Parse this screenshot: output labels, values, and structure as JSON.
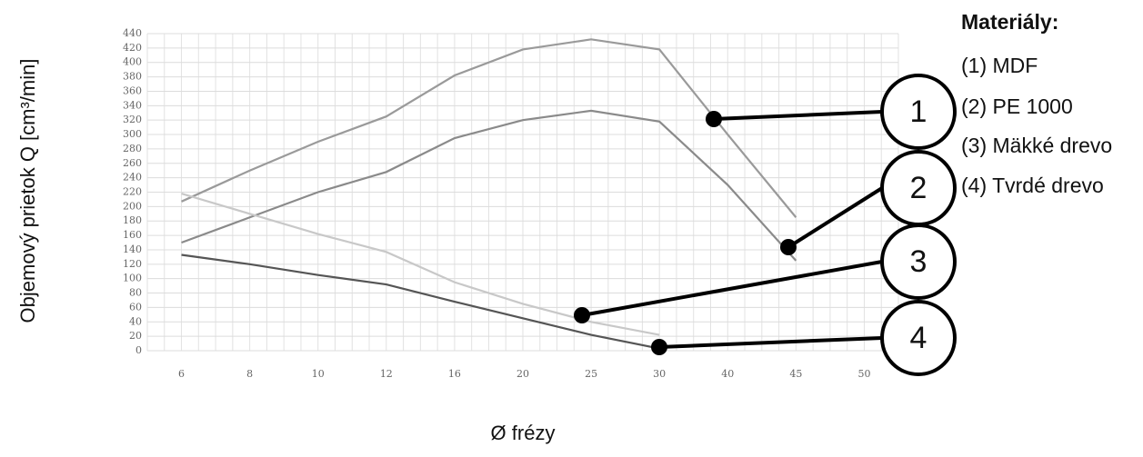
{
  "chart_data": {
    "type": "line",
    "y_label": "Objemový prietok Q [cm³/min]",
    "x_label": "Ø frézy",
    "legend_title": "Materiály:",
    "categories": [
      "6",
      "8",
      "10",
      "12",
      "16",
      "20",
      "25",
      "30",
      "40",
      "45",
      "50"
    ],
    "series": [
      {
        "name": "(1) MDF",
        "callout": "1",
        "color": "#9a9a9a",
        "values": [
          207,
          250,
          290,
          325,
          382,
          418,
          432,
          418,
          300,
          185,
          null
        ]
      },
      {
        "name": "(2) PE 1000",
        "callout": "2",
        "color": "#8a8a8a",
        "values": [
          150,
          185,
          220,
          248,
          295,
          320,
          333,
          318,
          230,
          125,
          null
        ]
      },
      {
        "name": "(3) Mäkké drevo",
        "callout": "3",
        "color": "#c8c8c8",
        "values": [
          218,
          190,
          162,
          137,
          95,
          65,
          40,
          22,
          null,
          null,
          null
        ]
      },
      {
        "name": "(4) Tvrdé drevo",
        "callout": "4",
        "color": "#555555",
        "values": [
          133,
          120,
          105,
          92,
          68,
          45,
          22,
          3,
          null,
          null,
          null
        ]
      }
    ],
    "ylim": [
      0,
      440
    ],
    "yticks": [
      0,
      20,
      40,
      60,
      80,
      100,
      120,
      140,
      160,
      180,
      200,
      220,
      240,
      260,
      280,
      300,
      320,
      340,
      360,
      380,
      400,
      420,
      440
    ],
    "grid": true
  }
}
